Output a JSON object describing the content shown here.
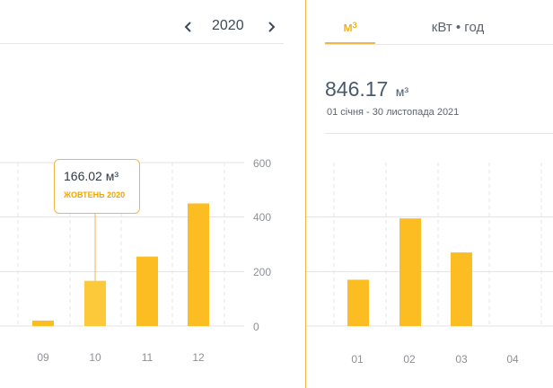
{
  "year_nav": {
    "year": "2020"
  },
  "left_chart": {
    "y_ticks": [
      "0",
      "200",
      "400",
      "600"
    ],
    "x_labels": [
      "09",
      "10",
      "11",
      "12"
    ],
    "tooltip": {
      "value": "166.02 м³",
      "month": "ЖОВТЕНЬ 2020"
    }
  },
  "right_panel": {
    "tabs": [
      {
        "label": "м³"
      },
      {
        "label": "кВт • год"
      }
    ],
    "total": {
      "value": "846.17",
      "unit": "м³"
    },
    "period": "01 січня - 30 листопада 2021",
    "x_labels": [
      "01",
      "02",
      "03",
      "04"
    ]
  },
  "chart_data": [
    {
      "type": "bar",
      "categories": [
        "09",
        "10",
        "11",
        "12"
      ],
      "values": [
        20,
        166.02,
        255,
        450
      ],
      "ylim": [
        0,
        600
      ],
      "y_ticks": [
        0,
        200,
        400,
        600
      ],
      "grid": true,
      "colors": {
        "bar": "#fbbd22",
        "highlight": "#fcc93a",
        "tooltip_border": "#f0b64a"
      }
    },
    {
      "type": "bar",
      "categories": [
        "01",
        "02",
        "03",
        "04"
      ],
      "values": [
        170,
        395,
        270,
        0
      ],
      "ylim": [
        0,
        600
      ],
      "grid": true,
      "colors": {
        "bar": "#fbbd22"
      }
    }
  ]
}
